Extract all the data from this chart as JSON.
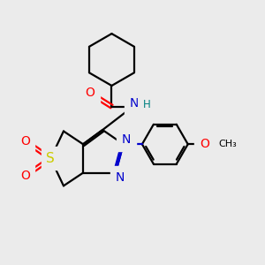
{
  "background_color": "#ebebeb",
  "atom_colors": {
    "C": "#000000",
    "N": "#0000cc",
    "O": "#ff0000",
    "S": "#cccc00",
    "H": "#008080"
  }
}
